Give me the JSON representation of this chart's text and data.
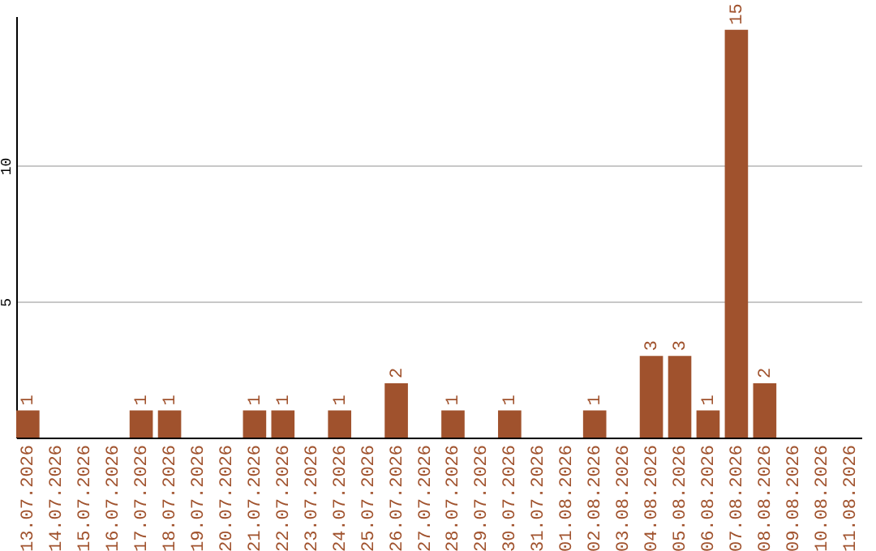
{
  "chart_data": {
    "type": "bar",
    "categories": [
      "13.07.2026",
      "14.07.2026",
      "15.07.2026",
      "16.07.2026",
      "17.07.2026",
      "18.07.2026",
      "19.07.2026",
      "20.07.2026",
      "21.07.2026",
      "22.07.2026",
      "23.07.2026",
      "24.07.2026",
      "25.07.2026",
      "26.07.2026",
      "27.07.2026",
      "28.07.2026",
      "29.07.2026",
      "30.07.2026",
      "31.07.2026",
      "01.08.2026",
      "02.08.2026",
      "03.08.2026",
      "04.08.2026",
      "05.08.2026",
      "06.08.2026",
      "07.08.2026",
      "08.08.2026",
      "09.08.2026",
      "10.08.2026",
      "11.08.2026"
    ],
    "values": [
      1,
      0,
      0,
      0,
      1,
      1,
      0,
      0,
      1,
      1,
      0,
      1,
      0,
      2,
      0,
      1,
      0,
      1,
      0,
      0,
      1,
      0,
      3,
      3,
      1,
      15,
      2,
      0,
      0,
      0
    ],
    "value_labels": [
      "1",
      null,
      null,
      null,
      "1",
      "1",
      null,
      null,
      "1",
      "1",
      null,
      "1",
      null,
      "2",
      null,
      "1",
      null,
      "1",
      null,
      null,
      "1",
      null,
      "3",
      "3",
      "1",
      "15",
      "2",
      null,
      null,
      null
    ],
    "color": "#a0522d",
    "ylim": [
      0,
      15.5
    ],
    "yticks": [
      5,
      10
    ],
    "grid": "y"
  }
}
